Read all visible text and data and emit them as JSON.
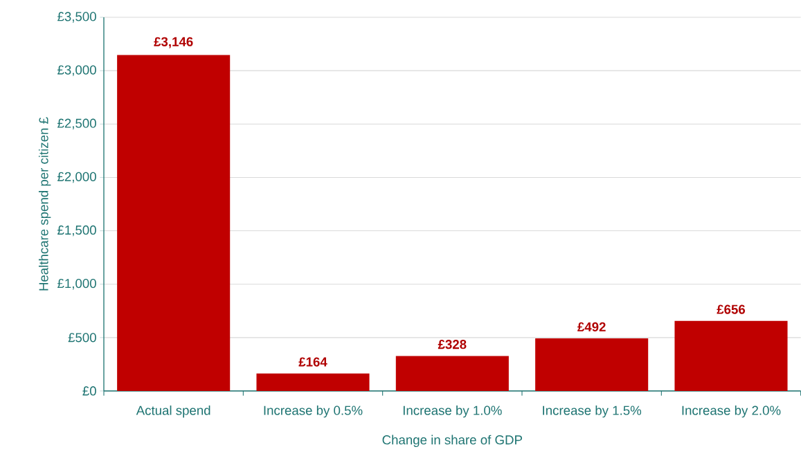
{
  "chart_data": {
    "type": "bar",
    "xlabel": "Change in share of GDP",
    "ylabel": "Healthcare spend per citizen £",
    "categories": [
      "Actual spend",
      "Increase by 0.5%",
      "Increase by 1.0%",
      "Increase by 1.5%",
      "Increase by 2.0%"
    ],
    "values": [
      3146,
      164,
      328,
      492,
      656
    ],
    "value_labels": [
      "£3,146",
      "£164",
      "£328",
      "£492",
      "£656"
    ],
    "color": "#c00000",
    "ylim": [
      0,
      3500
    ],
    "yticks": [
      {
        "value": 0,
        "label": "£0"
      },
      {
        "value": 500,
        "label": "£500"
      },
      {
        "value": 1000,
        "label": "£1,000"
      },
      {
        "value": 1500,
        "label": "£1,500"
      },
      {
        "value": 2000,
        "label": "£2,000"
      },
      {
        "value": 2500,
        "label": "£2,500"
      },
      {
        "value": 3000,
        "label": "£3,000"
      },
      {
        "value": 3500,
        "label": "£3,500"
      }
    ],
    "grid": "y"
  }
}
